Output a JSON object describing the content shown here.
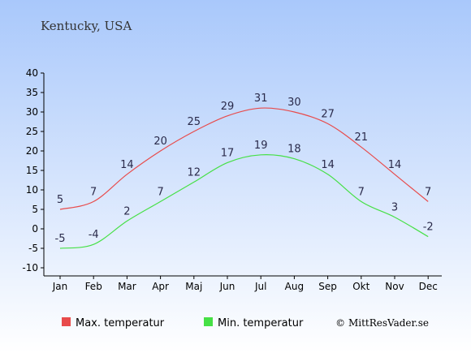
{
  "title": "Kentucky, USA",
  "copyright": "© MittResVader.se",
  "colors": {
    "bg_top": "#a9c8fb",
    "bg_bottom": "#ffffff",
    "max": "#e84b4b",
    "min": "#46e046",
    "axis": "#000000",
    "grid": "#c8c8c8"
  },
  "chart_data": {
    "type": "line",
    "title": "Kentucky, USA",
    "categories": [
      "Jan",
      "Feb",
      "Mar",
      "Apr",
      "Maj",
      "Jun",
      "Jul",
      "Aug",
      "Sep",
      "Okt",
      "Nov",
      "Dec"
    ],
    "ylim": [
      -10,
      40
    ],
    "yticks": [
      -10,
      -5,
      0,
      5,
      10,
      15,
      20,
      25,
      30,
      35,
      40
    ],
    "legend_position": "bottom",
    "series": [
      {
        "name": "Max. temperatur",
        "color": "#e84b4b",
        "values": [
          5,
          7,
          14,
          20,
          25,
          29,
          31,
          30,
          27,
          21,
          14,
          7
        ]
      },
      {
        "name": "Min. temperatur",
        "color": "#46e046",
        "values": [
          -5,
          -4,
          2,
          7,
          12,
          17,
          19,
          18,
          14,
          7,
          3,
          -2
        ]
      }
    ]
  }
}
